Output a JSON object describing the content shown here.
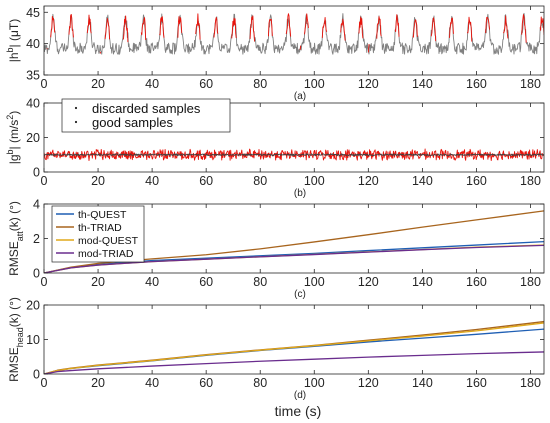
{
  "chart_data": [
    {
      "id": "a",
      "type": "line",
      "panel_label": "(a)",
      "ylabel": "|h",
      "ylabel_sup": "b",
      "ylabel_tail": "| (μT)",
      "xlim": [
        0,
        185
      ],
      "ylim": [
        35,
        46
      ],
      "xticks": [
        0,
        20,
        40,
        60,
        80,
        100,
        120,
        140,
        160,
        180
      ],
      "yticks": [
        35,
        40,
        45
      ],
      "grid": false,
      "series": [
        {
          "name": "good samples",
          "color": "#808080",
          "signal": {
            "kind": "periodic",
            "period": 6.7,
            "base": 39.2,
            "amplitude": 4.8,
            "noise": 0.9,
            "x_range": [
              0,
              185
            ]
          }
        },
        {
          "name": "discarded samples",
          "color": "#e8140c",
          "signal": {
            "kind": "periodic-peaks",
            "period": 6.7,
            "base": 39.2,
            "amplitude": 4.8,
            "noise": 0.9,
            "x_range": [
              0,
              185
            ]
          }
        }
      ]
    },
    {
      "id": "b",
      "type": "line",
      "panel_label": "(b)",
      "ylabel": "|g",
      "ylabel_sup": "b",
      "ylabel_tail": "| (m/s",
      "ylabel_end_sup": "2",
      "ylabel_close": ")",
      "xlim": [
        0,
        185
      ],
      "ylim": [
        0,
        40
      ],
      "xticks": [
        0,
        20,
        40,
        60,
        80,
        100,
        120,
        140,
        160,
        180
      ],
      "yticks": [
        0,
        20,
        40
      ],
      "grid": false,
      "legend": {
        "placement": "top-left",
        "entries": [
          "discarded samples",
          "good samples"
        ]
      },
      "series": [
        {
          "name": "discarded samples",
          "color": "#e8140c",
          "signal": {
            "kind": "noise",
            "base": 10.0,
            "amplitude": 3.5,
            "x_range": [
              0,
              185
            ]
          }
        },
        {
          "name": "good samples",
          "color": "#404040",
          "signal": {
            "kind": "noise",
            "base": 10.0,
            "amplitude": 0.6,
            "x_range": [
              0,
              185
            ]
          }
        }
      ]
    },
    {
      "id": "c",
      "type": "line",
      "panel_label": "(c)",
      "ylabel": "RMSE",
      "ylabel_sub": "att",
      "ylabel_tail": "(k) (°)",
      "xlim": [
        0,
        185
      ],
      "ylim": [
        0,
        4
      ],
      "xticks": [
        0,
        20,
        40,
        60,
        80,
        100,
        120,
        140,
        160,
        180
      ],
      "yticks": [
        0,
        2,
        4
      ],
      "grid": false,
      "legend": {
        "placement": "top-left",
        "entries": [
          "th-QUEST",
          "th-TRIAD",
          "mod-QUEST",
          "mod-TRIAD"
        ]
      },
      "x": [
        0,
        10,
        20,
        40,
        60,
        80,
        100,
        120,
        140,
        160,
        185
      ],
      "series": [
        {
          "name": "th-QUEST",
          "color": "#1f5fb4",
          "values": [
            0,
            0.32,
            0.5,
            0.72,
            0.86,
            1.0,
            1.14,
            1.3,
            1.46,
            1.62,
            1.82
          ]
        },
        {
          "name": "th-TRIAD",
          "color": "#a8651e",
          "values": [
            0,
            0.34,
            0.56,
            0.82,
            1.06,
            1.4,
            1.8,
            2.22,
            2.66,
            3.08,
            3.6
          ]
        },
        {
          "name": "mod-QUEST",
          "color": "#e0a81a",
          "values": [
            0,
            0.3,
            0.46,
            0.66,
            0.8,
            0.94,
            1.08,
            1.22,
            1.36,
            1.5,
            1.62
          ]
        },
        {
          "name": "mod-TRIAD",
          "color": "#6a2d8e",
          "values": [
            0,
            0.3,
            0.46,
            0.66,
            0.8,
            0.94,
            1.07,
            1.21,
            1.35,
            1.48,
            1.6
          ]
        }
      ]
    },
    {
      "id": "d",
      "type": "line",
      "panel_label": "(d)",
      "ylabel": "RMSE",
      "ylabel_sub": "head",
      "ylabel_tail": "(k) (°)",
      "xlabel": "time (s)",
      "xlim": [
        0,
        185
      ],
      "ylim": [
        0,
        20
      ],
      "xticks": [
        0,
        20,
        40,
        60,
        80,
        100,
        120,
        140,
        160,
        180
      ],
      "yticks": [
        0,
        10,
        20
      ],
      "grid": false,
      "x": [
        0,
        5,
        10,
        20,
        40,
        60,
        80,
        100,
        120,
        140,
        160,
        185
      ],
      "series": [
        {
          "name": "th-QUEST",
          "color": "#1f5fb4",
          "values": [
            0,
            1.0,
            1.6,
            2.4,
            3.8,
            5.4,
            6.8,
            8.0,
            9.3,
            10.4,
            11.5,
            13.0
          ]
        },
        {
          "name": "th-TRIAD",
          "color": "#a8651e",
          "values": [
            0,
            1.1,
            1.7,
            2.6,
            4.0,
            5.6,
            7.0,
            8.3,
            9.8,
            11.3,
            12.9,
            15.2
          ]
        },
        {
          "name": "mod-QUEST",
          "color": "#e0a81a",
          "values": [
            0,
            1.0,
            1.6,
            2.5,
            3.9,
            5.5,
            6.9,
            8.2,
            9.6,
            11.0,
            12.5,
            14.8
          ]
        },
        {
          "name": "mod-TRIAD",
          "color": "#6a2d8e",
          "values": [
            0,
            0.7,
            1.0,
            1.5,
            2.3,
            3.0,
            3.7,
            4.3,
            4.9,
            5.4,
            5.9,
            6.4
          ]
        }
      ]
    }
  ]
}
